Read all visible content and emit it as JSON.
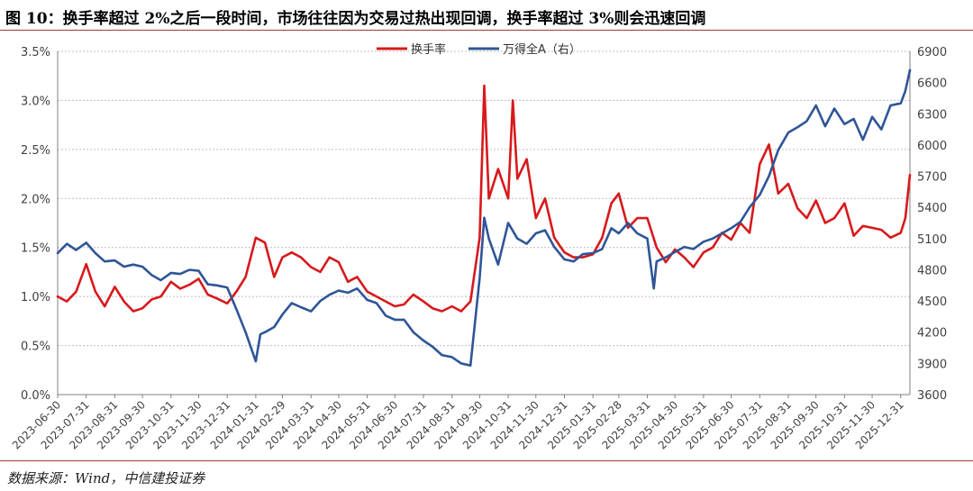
{
  "header": {
    "title": "图 10：换手率超过 2%之后一段时间，市场往往因为交易过热出现回调，换手率超过 3%则会迅速回调"
  },
  "footer": {
    "source": "数据来源：Wind，中信建投证券"
  },
  "colors": {
    "turnover": "#d7191c",
    "index": "#2f5597",
    "border": "#9b3a3a",
    "grid": "#bfbfbf",
    "axis_text": "#404040"
  },
  "chart_data": {
    "type": "line",
    "title": "",
    "legend": {
      "placement": "top-center",
      "entries": [
        "换手率",
        "万得全A（右）"
      ]
    },
    "grid": "horizontal-dashed",
    "x_tick_labels": [
      "2023-06-30",
      "2023-07-31",
      "2023-08-31",
      "2023-09-30",
      "2023-10-31",
      "2023-11-30",
      "2023-12-31",
      "2024-01-31",
      "2024-02-29",
      "2024-03-31",
      "2024-04-30",
      "2024-05-31",
      "2024-06-30",
      "2024-07-31",
      "2024-08-31",
      "2024-09-30",
      "2024-10-31",
      "2024-11-30",
      "2024-12-31",
      "2025-01-31",
      "2025-02-28",
      "2025-03-31",
      "2025-04-30",
      "2025-05-31",
      "2025-06-30",
      "2025-07-31",
      "2025-08-31",
      "2025-09-30",
      "2025-10-31",
      "2025-11-30",
      "2025-12-31"
    ],
    "y_left": {
      "min": 0,
      "max": 3.5,
      "step": 0.5,
      "unit": "%",
      "tick_labels": [
        "0.0%",
        "0.5%",
        "1.0%",
        "1.5%",
        "2.0%",
        "2.5%",
        "3.0%",
        "3.5%"
      ]
    },
    "y_right": {
      "min": 3600,
      "max": 6900,
      "step": 300,
      "tick_labels": [
        "3600",
        "3900",
        "4200",
        "4500",
        "4800",
        "5100",
        "5400",
        "5700",
        "6000",
        "6300",
        "6600",
        "6900"
      ]
    },
    "series": [
      {
        "name": "换手率",
        "axis": "left",
        "color": "#d7191c",
        "x": [
          "2023-06-30",
          "2023-07-10",
          "2023-07-20",
          "2023-07-31",
          "2023-08-10",
          "2023-08-20",
          "2023-08-31",
          "2023-09-10",
          "2023-09-20",
          "2023-09-30",
          "2023-10-10",
          "2023-10-20",
          "2023-10-31",
          "2023-11-10",
          "2023-11-20",
          "2023-11-30",
          "2023-12-10",
          "2023-12-20",
          "2023-12-31",
          "2024-01-10",
          "2024-01-20",
          "2024-01-31",
          "2024-02-10",
          "2024-02-20",
          "2024-02-29",
          "2024-03-10",
          "2024-03-20",
          "2024-03-31",
          "2024-04-10",
          "2024-04-20",
          "2024-04-30",
          "2024-05-10",
          "2024-05-20",
          "2024-05-31",
          "2024-06-10",
          "2024-06-20",
          "2024-06-30",
          "2024-07-10",
          "2024-07-20",
          "2024-07-31",
          "2024-08-10",
          "2024-08-20",
          "2024-08-31",
          "2024-09-10",
          "2024-09-20",
          "2024-09-30",
          "2024-10-05",
          "2024-10-10",
          "2024-10-20",
          "2024-10-31",
          "2024-11-05",
          "2024-11-10",
          "2024-11-20",
          "2024-11-30",
          "2024-12-10",
          "2024-12-20",
          "2024-12-31",
          "2025-01-10",
          "2025-01-20",
          "2025-01-31",
          "2025-02-10",
          "2025-02-20",
          "2025-02-28",
          "2025-03-10",
          "2025-03-20",
          "2025-03-31",
          "2025-04-10",
          "2025-04-20",
          "2025-04-30",
          "2025-05-10",
          "2025-05-20",
          "2025-05-31",
          "2025-06-10",
          "2025-06-20",
          "2025-06-30",
          "2025-07-10",
          "2025-07-20",
          "2025-07-31",
          "2025-08-10",
          "2025-08-20",
          "2025-08-31",
          "2025-09-10",
          "2025-09-20",
          "2025-09-30",
          "2025-10-10",
          "2025-10-20",
          "2025-10-31",
          "2025-11-10",
          "2025-11-20",
          "2025-11-30",
          "2025-12-10",
          "2025-12-20",
          "2025-12-31",
          "2026-01-05",
          "2026-01-10"
        ],
        "values": [
          1.0,
          0.95,
          1.05,
          1.33,
          1.05,
          0.9,
          1.1,
          0.95,
          0.85,
          0.88,
          0.97,
          1.0,
          1.15,
          1.08,
          1.12,
          1.18,
          1.02,
          0.98,
          0.93,
          1.05,
          1.2,
          1.6,
          1.55,
          1.2,
          1.4,
          1.45,
          1.4,
          1.3,
          1.25,
          1.4,
          1.35,
          1.15,
          1.2,
          1.05,
          1.0,
          0.95,
          0.9,
          0.92,
          1.02,
          0.95,
          0.88,
          0.85,
          0.9,
          0.85,
          0.95,
          1.6,
          3.15,
          2.0,
          2.3,
          2.0,
          3.0,
          2.2,
          2.4,
          1.8,
          2.0,
          1.6,
          1.45,
          1.4,
          1.4,
          1.43,
          1.6,
          1.95,
          2.05,
          1.7,
          1.8,
          1.8,
          1.5,
          1.35,
          1.48,
          1.4,
          1.3,
          1.45,
          1.5,
          1.65,
          1.58,
          1.75,
          1.65,
          2.35,
          2.55,
          2.05,
          2.15,
          1.9,
          1.8,
          1.98,
          1.75,
          1.8,
          1.95,
          1.62,
          1.72,
          1.7,
          1.68,
          1.6,
          1.65,
          1.8,
          2.24
        ]
      },
      {
        "name": "万得全A（右）",
        "axis": "right",
        "color": "#2f5597",
        "x": [
          "2023-06-30",
          "2023-07-10",
          "2023-07-20",
          "2023-07-31",
          "2023-08-10",
          "2023-08-20",
          "2023-08-31",
          "2023-09-10",
          "2023-09-20",
          "2023-09-30",
          "2023-10-10",
          "2023-10-20",
          "2023-10-31",
          "2023-11-10",
          "2023-11-20",
          "2023-11-30",
          "2023-12-10",
          "2023-12-20",
          "2023-12-31",
          "2024-01-10",
          "2024-01-20",
          "2024-01-31",
          "2024-02-05",
          "2024-02-10",
          "2024-02-20",
          "2024-02-29",
          "2024-03-10",
          "2024-03-20",
          "2024-03-31",
          "2024-04-10",
          "2024-04-20",
          "2024-04-30",
          "2024-05-10",
          "2024-05-20",
          "2024-05-31",
          "2024-06-10",
          "2024-06-20",
          "2024-06-30",
          "2024-07-10",
          "2024-07-20",
          "2024-07-31",
          "2024-08-10",
          "2024-08-20",
          "2024-08-31",
          "2024-09-10",
          "2024-09-20",
          "2024-09-30",
          "2024-10-05",
          "2024-10-10",
          "2024-10-20",
          "2024-10-31",
          "2024-11-10",
          "2024-11-20",
          "2024-11-30",
          "2024-12-10",
          "2024-12-20",
          "2024-12-31",
          "2025-01-10",
          "2025-01-20",
          "2025-01-31",
          "2025-02-10",
          "2025-02-20",
          "2025-02-28",
          "2025-03-10",
          "2025-03-20",
          "2025-03-31",
          "2025-04-07",
          "2025-04-10",
          "2025-04-20",
          "2025-04-30",
          "2025-05-10",
          "2025-05-20",
          "2025-05-31",
          "2025-06-10",
          "2025-06-20",
          "2025-06-30",
          "2025-07-10",
          "2025-07-20",
          "2025-07-31",
          "2025-08-10",
          "2025-08-20",
          "2025-08-31",
          "2025-09-10",
          "2025-09-20",
          "2025-09-30",
          "2025-10-10",
          "2025-10-20",
          "2025-10-31",
          "2025-11-10",
          "2025-11-20",
          "2025-11-30",
          "2025-12-10",
          "2025-12-20",
          "2025-12-31",
          "2026-01-05",
          "2026-01-10"
        ],
        "values": [
          4960,
          5050,
          4990,
          5060,
          4960,
          4880,
          4890,
          4830,
          4850,
          4830,
          4750,
          4700,
          4770,
          4760,
          4800,
          4790,
          4660,
          4650,
          4630,
          4420,
          4200,
          3920,
          4180,
          4200,
          4250,
          4370,
          4480,
          4440,
          4400,
          4500,
          4560,
          4600,
          4580,
          4620,
          4510,
          4480,
          4360,
          4320,
          4320,
          4200,
          4120,
          4060,
          3980,
          3960,
          3900,
          3880,
          4720,
          5300,
          5100,
          4850,
          5250,
          5100,
          5050,
          5150,
          5180,
          5020,
          4900,
          4880,
          4950,
          4960,
          5000,
          5200,
          5150,
          5250,
          5150,
          5100,
          4620,
          4880,
          4920,
          4970,
          5020,
          5000,
          5070,
          5100,
          5150,
          5200,
          5260,
          5400,
          5520,
          5700,
          5950,
          6120,
          6170,
          6230,
          6380,
          6180,
          6350,
          6200,
          6250,
          6050,
          6270,
          6150,
          6380,
          6400,
          6520,
          6720
        ]
      }
    ]
  }
}
